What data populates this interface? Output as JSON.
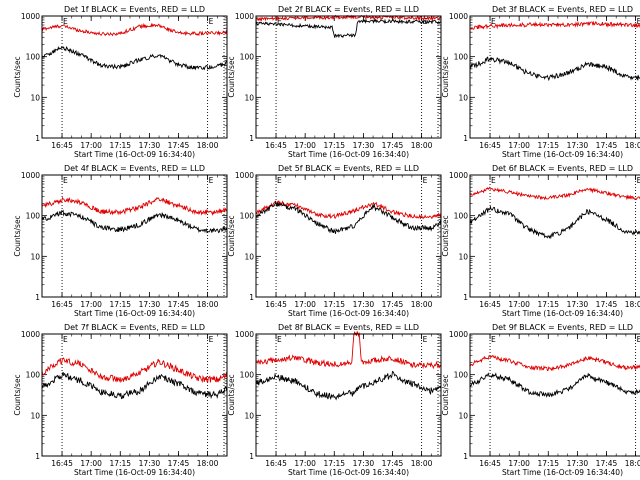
{
  "chart_data": [
    {
      "type": "line",
      "title": "Det 1f BLACK = Events, RED = LLD",
      "xlabel": "Start Time (16-Oct-09 16:34:40)",
      "ylabel": "Counts/sec",
      "y_scale": "log",
      "ylim": [
        1,
        1000
      ],
      "x_ticks": [
        "16:45",
        "17:00",
        "17:15",
        "17:30",
        "17:45",
        "18:00"
      ],
      "y_ticks": [
        "1",
        "10",
        "100",
        "1000"
      ],
      "markers": [
        "16:45",
        "18:00"
      ],
      "marker_labels": [
        "E",
        "E"
      ],
      "x": [
        "16:35",
        "16:45",
        "16:55",
        "17:05",
        "17:15",
        "17:25",
        "17:35",
        "17:45",
        "17:55",
        "18:05",
        "18:10"
      ],
      "series": [
        {
          "name": "LLD",
          "color": "#e00000",
          "values": [
            480,
            580,
            430,
            360,
            370,
            560,
            580,
            380,
            370,
            380,
            390
          ],
          "noise": 0.04
        },
        {
          "name": "Events",
          "color": "#000000",
          "values": [
            100,
            170,
            110,
            60,
            55,
            85,
            110,
            62,
            52,
            58,
            70
          ],
          "noise": 0.05
        }
      ]
    },
    {
      "type": "line",
      "title": "Det 2f BLACK = Events, RED = LLD",
      "xlabel": "Start Time (16-Oct-09 16:34:40)",
      "ylabel": "Counts/sec",
      "y_scale": "log",
      "ylim": [
        1,
        1000
      ],
      "x_ticks": [
        "16:45",
        "17:00",
        "17:15",
        "17:30",
        "17:45",
        "18:00"
      ],
      "y_ticks": [
        "1",
        "10",
        "100",
        "1000"
      ],
      "markers": [
        "16:45",
        "18:00"
      ],
      "marker_labels": [
        "E",
        "E"
      ],
      "x": [
        "16:35",
        "16:45",
        "17:00",
        "17:14",
        "17:15",
        "17:26",
        "17:27",
        "17:45",
        "18:00",
        "18:10"
      ],
      "series": [
        {
          "name": "LLD",
          "color": "#e00000",
          "values": [
            850,
            870,
            900,
            920,
            950,
            930,
            940,
            920,
            900,
            880
          ],
          "noise": 0.04
        },
        {
          "name": "Events",
          "color": "#000000",
          "values": [
            650,
            640,
            560,
            520,
            320,
            340,
            760,
            740,
            720,
            700
          ],
          "noise": 0.04
        }
      ]
    },
    {
      "type": "line",
      "title": "Det 3f BLACK = Events, RED = LLD",
      "xlabel": "Start Time (16-Oct-09 16:34:40)",
      "ylabel": "Counts/sec",
      "y_scale": "log",
      "ylim": [
        1,
        1000
      ],
      "x_ticks": [
        "16:45",
        "17:00",
        "17:15",
        "17:30",
        "17:45",
        "18:00"
      ],
      "y_ticks": [
        "1",
        "10",
        "100",
        "1000"
      ],
      "markers": [
        "16:45",
        "18:00"
      ],
      "marker_labels": [
        "E",
        "E"
      ],
      "x": [
        "16:35",
        "16:45",
        "16:55",
        "17:05",
        "17:15",
        "17:25",
        "17:35",
        "17:45",
        "17:55",
        "18:05",
        "18:10"
      ],
      "series": [
        {
          "name": "LLD",
          "color": "#e00000",
          "values": [
            520,
            570,
            600,
            610,
            600,
            620,
            650,
            630,
            600,
            580,
            590
          ],
          "noise": 0.05
        },
        {
          "name": "Events",
          "color": "#000000",
          "values": [
            55,
            90,
            70,
            38,
            30,
            40,
            65,
            55,
            32,
            28,
            35
          ],
          "noise": 0.06
        }
      ]
    },
    {
      "type": "line",
      "title": "Det 4f BLACK = Events, RED = LLD",
      "xlabel": "Start Time (16-Oct-09 16:34:40)",
      "ylabel": "Counts/sec",
      "y_scale": "log",
      "ylim": [
        1,
        1000
      ],
      "x_ticks": [
        "16:45",
        "17:00",
        "17:15",
        "17:30",
        "17:45",
        "18:00"
      ],
      "y_ticks": [
        "1",
        "10",
        "100",
        "1000"
      ],
      "markers": [
        "16:45",
        "18:00"
      ],
      "marker_labels": [
        "E",
        "E"
      ],
      "x": [
        "16:35",
        "16:45",
        "16:55",
        "17:05",
        "17:15",
        "17:25",
        "17:35",
        "17:45",
        "17:55",
        "18:05",
        "18:10"
      ],
      "series": [
        {
          "name": "LLD",
          "color": "#e00000",
          "values": [
            170,
            250,
            210,
            125,
            120,
            160,
            260,
            175,
            120,
            120,
            140
          ],
          "noise": 0.06
        },
        {
          "name": "Events",
          "color": "#000000",
          "values": [
            80,
            120,
            95,
            50,
            45,
            60,
            110,
            75,
            45,
            42,
            50
          ],
          "noise": 0.06
        }
      ]
    },
    {
      "type": "line",
      "title": "Det 5f BLACK = Events, RED = LLD",
      "xlabel": "Start Time (16-Oct-09 16:34:40)",
      "ylabel": "Counts/sec",
      "y_scale": "log",
      "ylim": [
        1,
        1000
      ],
      "x_ticks": [
        "16:45",
        "17:00",
        "17:15",
        "17:30",
        "17:45",
        "18:00"
      ],
      "y_ticks": [
        "1",
        "10",
        "100",
        "1000"
      ],
      "markers": [
        "16:45",
        "18:00"
      ],
      "marker_labels": [
        "E",
        "E"
      ],
      "x": [
        "16:35",
        "16:45",
        "16:55",
        "17:05",
        "17:15",
        "17:25",
        "17:35",
        "17:45",
        "17:55",
        "18:05",
        "18:10"
      ],
      "series": [
        {
          "name": "LLD",
          "color": "#e00000",
          "values": [
            120,
            210,
            180,
            110,
            95,
            130,
            200,
            125,
            95,
            90,
            105
          ],
          "noise": 0.05
        },
        {
          "name": "Events",
          "color": "#000000",
          "values": [
            100,
            190,
            150,
            70,
            40,
            55,
            170,
            90,
            50,
            50,
            65
          ],
          "noise": 0.06
        }
      ]
    },
    {
      "type": "line",
      "title": "Det 6f BLACK = Events, RED = LLD",
      "xlabel": "Start Time (16-Oct-09 16:34:40)",
      "ylabel": "Counts/sec",
      "y_scale": "log",
      "ylim": [
        1,
        1000
      ],
      "x_ticks": [
        "16:45",
        "17:00",
        "17:15",
        "17:30",
        "17:45",
        "18:00"
      ],
      "y_ticks": [
        "1",
        "10",
        "100",
        "1000"
      ],
      "markers": [
        "16:45",
        "18:00"
      ],
      "marker_labels": [
        "E",
        "E"
      ],
      "x": [
        "16:35",
        "16:45",
        "16:55",
        "17:05",
        "17:15",
        "17:25",
        "17:35",
        "17:45",
        "17:55",
        "18:05",
        "18:10"
      ],
      "series": [
        {
          "name": "LLD",
          "color": "#e00000",
          "values": [
            330,
            460,
            380,
            300,
            270,
            320,
            450,
            360,
            280,
            270,
            280
          ],
          "noise": 0.04
        },
        {
          "name": "Events",
          "color": "#000000",
          "values": [
            70,
            150,
            110,
            45,
            30,
            45,
            130,
            80,
            40,
            38,
            55
          ],
          "noise": 0.06
        }
      ]
    },
    {
      "type": "line",
      "title": "Det 7f BLACK = Events, RED = LLD",
      "xlabel": "Start Time (16-Oct-09 16:34:40)",
      "ylabel": "Counts/sec",
      "y_scale": "log",
      "ylim": [
        1,
        1000
      ],
      "x_ticks": [
        "16:45",
        "17:00",
        "17:15",
        "17:30",
        "17:45",
        "18:00"
      ],
      "y_ticks": [
        "1",
        "10",
        "100",
        "1000"
      ],
      "markers": [
        "16:45",
        "18:00"
      ],
      "marker_labels": [
        "E",
        "E"
      ],
      "x": [
        "16:35",
        "16:45",
        "16:55",
        "17:05",
        "17:15",
        "17:25",
        "17:35",
        "17:45",
        "17:55",
        "18:05",
        "18:10"
      ],
      "series": [
        {
          "name": "LLD",
          "color": "#e00000",
          "values": [
            110,
            230,
            180,
            90,
            75,
            110,
            210,
            130,
            80,
            75,
            95
          ],
          "noise": 0.08
        },
        {
          "name": "Events",
          "color": "#000000",
          "values": [
            50,
            100,
            70,
            38,
            30,
            40,
            95,
            60,
            35,
            32,
            45
          ],
          "noise": 0.08
        }
      ]
    },
    {
      "type": "line",
      "title": "Det 8f BLACK = Events, RED = LLD",
      "xlabel": "Start Time (16-Oct-09 16:34:40)",
      "ylabel": "Counts/sec",
      "y_scale": "log",
      "ylim": [
        1,
        1000
      ],
      "x_ticks": [
        "16:45",
        "17:00",
        "17:15",
        "17:30",
        "17:45",
        "18:00"
      ],
      "y_ticks": [
        "1",
        "10",
        "100",
        "1000"
      ],
      "markers": [
        "16:45",
        "18:00"
      ],
      "marker_labels": [
        "E",
        "E"
      ],
      "x": [
        "16:35",
        "16:45",
        "16:55",
        "17:05",
        "17:15",
        "17:24",
        "17:25",
        "17:28",
        "17:29",
        "17:45",
        "17:55",
        "18:05",
        "18:10"
      ],
      "series": [
        {
          "name": "LLD",
          "color": "#e00000",
          "values": [
            200,
            230,
            260,
            200,
            180,
            190,
            1000,
            1000,
            200,
            260,
            170,
            170,
            180
          ],
          "noise": 0.07
        },
        {
          "name": "Events",
          "color": "#000000",
          "values": [
            60,
            90,
            70,
            35,
            28,
            35,
            35,
            50,
            50,
            100,
            60,
            40,
            50
          ],
          "noise": 0.08
        }
      ]
    },
    {
      "type": "line",
      "title": "Det 9f BLACK = Events, RED = LLD",
      "xlabel": "Start Time (16-Oct-09 16:34:40)",
      "ylabel": "Counts/sec",
      "y_scale": "log",
      "ylim": [
        1,
        1000
      ],
      "x_ticks": [
        "16:45",
        "17:00",
        "17:15",
        "17:30",
        "17:45",
        "18:00"
      ],
      "y_ticks": [
        "1",
        "10",
        "100",
        "1000"
      ],
      "markers": [
        "16:45",
        "18:00"
      ],
      "marker_labels": [
        "E",
        "E"
      ],
      "x": [
        "16:35",
        "16:45",
        "16:55",
        "17:05",
        "17:15",
        "17:25",
        "17:35",
        "17:45",
        "17:55",
        "18:05",
        "18:10"
      ],
      "series": [
        {
          "name": "LLD",
          "color": "#e00000",
          "values": [
            180,
            280,
            220,
            150,
            140,
            170,
            260,
            200,
            150,
            150,
            160
          ],
          "noise": 0.05
        },
        {
          "name": "Events",
          "color": "#000000",
          "values": [
            55,
            100,
            75,
            38,
            32,
            42,
            95,
            65,
            38,
            36,
            45
          ],
          "noise": 0.06
        }
      ]
    }
  ]
}
